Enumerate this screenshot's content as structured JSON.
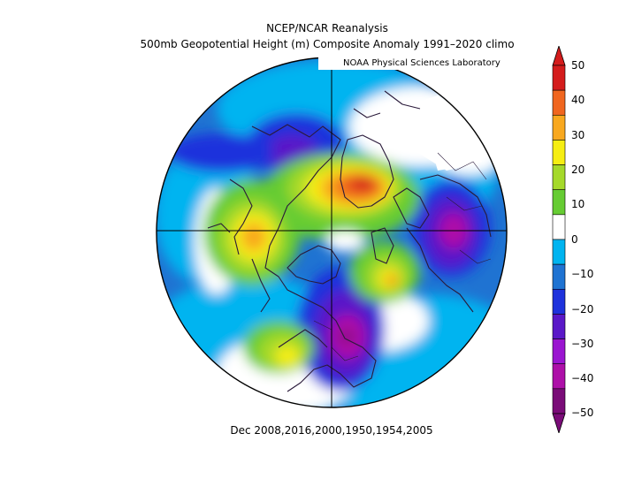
{
  "header": {
    "title": "NCEP/NCAR Reanalysis",
    "subtitle": "500mb Geopotential Height (m) Composite Anomaly 1991–2020 climo",
    "credit": "NOAA Physical Sciences Laboratory"
  },
  "footer": {
    "label": "Dec 2008,2016,2000,1950,1954,2005"
  },
  "colorbar": {
    "labels": [
      "50",
      "40",
      "30",
      "20",
      "10",
      "0",
      "−10",
      "−20",
      "−30",
      "−40",
      "−50"
    ],
    "colors": [
      "#d41c1c",
      "#f0661f",
      "#f8a81f",
      "#f6ee12",
      "#a5d92a",
      "#66cc33",
      "#ffffff",
      "#00b4f0",
      "#1f73d2",
      "#1e32dc",
      "#5a18c8",
      "#9a15d0",
      "#ad0fa8",
      "#7a0c78"
    ]
  }
}
